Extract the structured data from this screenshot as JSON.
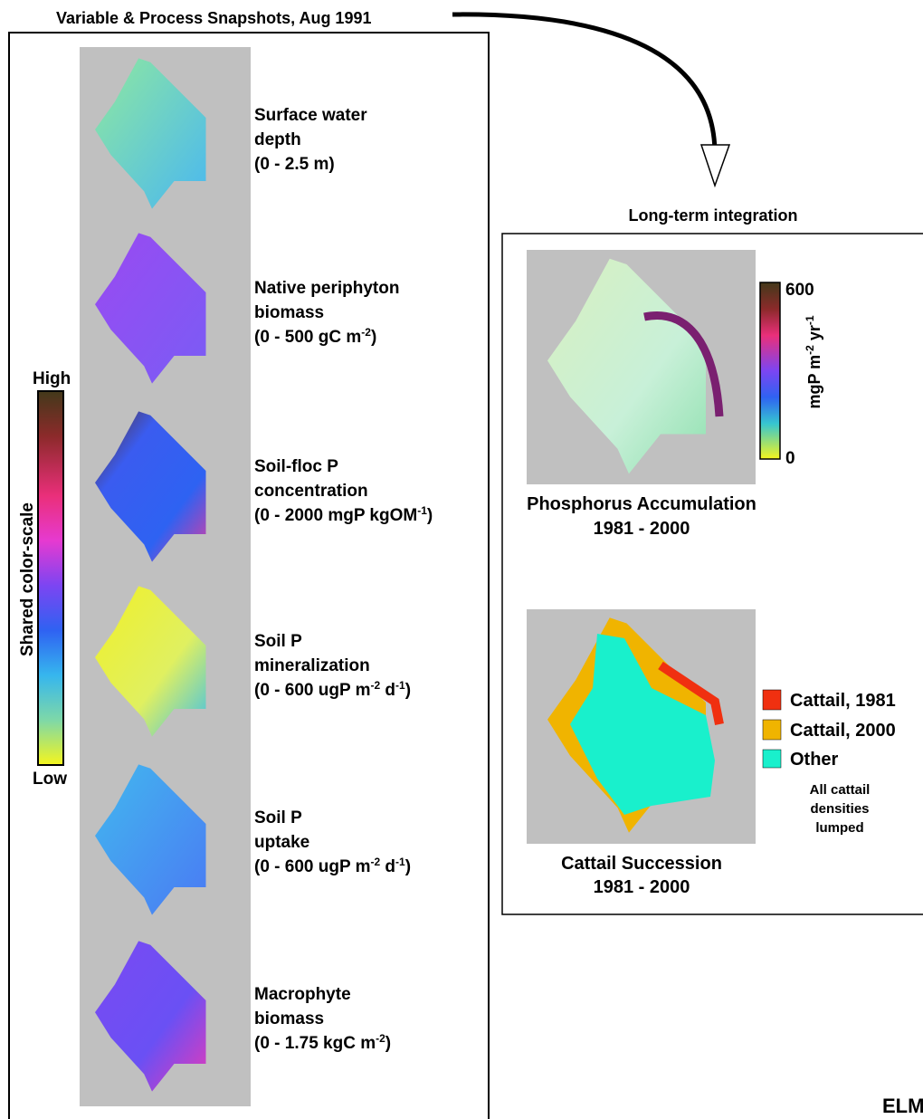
{
  "left_panel": {
    "title": "Variable & Process Snapshots, Aug 1991",
    "colorscale": {
      "label": "Shared color-scale",
      "high": "High",
      "low": "Low"
    },
    "snapshots": [
      {
        "lines": [
          [
            "Surface water"
          ],
          [
            "depth"
          ],
          [
            "(0 - 2.5 m)"
          ]
        ]
      },
      {
        "lines": [
          [
            "Native periphyton"
          ],
          [
            "biomass"
          ],
          [
            "(0 - 500 gC m",
            "-2",
            ")"
          ]
        ]
      },
      {
        "lines": [
          [
            "Soil-floc P"
          ],
          [
            "concentration"
          ],
          [
            "(0 - 2000 mgP kgOM",
            "-1",
            ")"
          ]
        ]
      },
      {
        "lines": [
          [
            "Soil P"
          ],
          [
            "mineralization"
          ],
          [
            "(0 - 600 ugP m",
            "-2",
            " d",
            "-1",
            ")"
          ]
        ]
      },
      {
        "lines": [
          [
            "Soil P"
          ],
          [
            "uptake"
          ],
          [
            "(0 - 600 ugP m",
            "-2",
            " d",
            "-1",
            ")"
          ]
        ]
      },
      {
        "lines": [
          [
            "Macrophyte"
          ],
          [
            "biomass"
          ],
          [
            "(0 - 1.75 kgC m",
            "-2",
            ")"
          ]
        ]
      }
    ]
  },
  "right_panel": {
    "title": "Long-term integration",
    "phosphorus": {
      "colorbar": {
        "max": "600",
        "min": "0",
        "unit": [
          "mgP m",
          "-2",
          " yr",
          "-1"
        ]
      },
      "caption": [
        "Phosphorus Accumulation",
        "1981 - 2000"
      ]
    },
    "cattail": {
      "legend": [
        "Cattail, 1981",
        "Cattail, 2000",
        "Other"
      ],
      "note": [
        "All cattail",
        "densities",
        "lumped"
      ],
      "caption": [
        "Cattail Succession",
        "1981 - 2000"
      ]
    }
  },
  "corner": "ELM"
}
